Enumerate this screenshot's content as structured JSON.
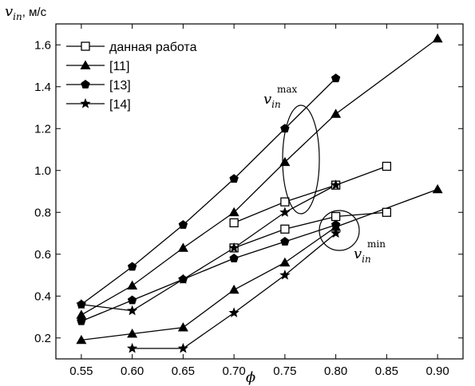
{
  "chart_data": {
    "type": "line",
    "ylabel": {
      "symbol": "v",
      "subscript": "in",
      "unit": "м/с"
    },
    "xlabel": "ϕ",
    "xlim": [
      0.525,
      0.925
    ],
    "ylim": [
      0.1,
      1.7
    ],
    "x_ticks": [
      "0.55",
      "0.60",
      "0.65",
      "0.70",
      "0.75",
      "0.80",
      "0.85",
      "0.90"
    ],
    "y_ticks": [
      "0.2",
      "0.4",
      "0.6",
      "0.8",
      "1.0",
      "1.2",
      "1.4",
      "1.6"
    ],
    "grid": false,
    "legend_position": "top-left",
    "series": [
      {
        "name": "данная работа",
        "marker": "open-square",
        "curves": [
          [
            [
              0.7,
              0.75
            ],
            [
              0.75,
              0.85
            ],
            [
              0.8,
              0.93
            ],
            [
              0.85,
              1.02
            ]
          ],
          [
            [
              0.7,
              0.63
            ],
            [
              0.75,
              0.72
            ],
            [
              0.8,
              0.78
            ],
            [
              0.85,
              0.8
            ]
          ]
        ]
      },
      {
        "name": "[11]",
        "marker": "filled-triangle",
        "curves": [
          [
            [
              0.55,
              0.31
            ],
            [
              0.6,
              0.45
            ],
            [
              0.65,
              0.63
            ],
            [
              0.7,
              0.8
            ],
            [
              0.75,
              1.04
            ],
            [
              0.8,
              1.27
            ],
            [
              0.9,
              1.63
            ]
          ],
          [
            [
              0.55,
              0.19
            ],
            [
              0.6,
              0.22
            ],
            [
              0.65,
              0.25
            ],
            [
              0.7,
              0.43
            ],
            [
              0.75,
              0.56
            ],
            [
              0.8,
              0.73
            ],
            [
              0.9,
              0.91
            ]
          ]
        ]
      },
      {
        "name": "[13]",
        "marker": "filled-pentagon",
        "curves": [
          [
            [
              0.55,
              0.36
            ],
            [
              0.6,
              0.54
            ],
            [
              0.65,
              0.74
            ],
            [
              0.7,
              0.96
            ],
            [
              0.75,
              1.2
            ],
            [
              0.8,
              1.44
            ]
          ],
          [
            [
              0.55,
              0.28
            ],
            [
              0.6,
              0.38
            ],
            [
              0.65,
              0.48
            ],
            [
              0.7,
              0.58
            ],
            [
              0.75,
              0.66
            ],
            [
              0.8,
              0.74
            ]
          ]
        ]
      },
      {
        "name": "[14]",
        "marker": "filled-star",
        "curves": [
          [
            [
              0.55,
              0.36
            ],
            [
              0.6,
              0.33
            ],
            [
              0.65,
              0.48
            ],
            [
              0.7,
              0.63
            ],
            [
              0.75,
              0.8
            ],
            [
              0.8,
              0.93
            ]
          ],
          [
            [
              0.6,
              0.15
            ],
            [
              0.65,
              0.15
            ],
            [
              0.7,
              0.32
            ],
            [
              0.75,
              0.5
            ],
            [
              0.8,
              0.7
            ]
          ]
        ]
      }
    ],
    "annotations": [
      {
        "main": "v",
        "subscript": "in",
        "superscript": "max"
      },
      {
        "main": "v",
        "subscript": "in",
        "superscript": "min"
      }
    ]
  }
}
